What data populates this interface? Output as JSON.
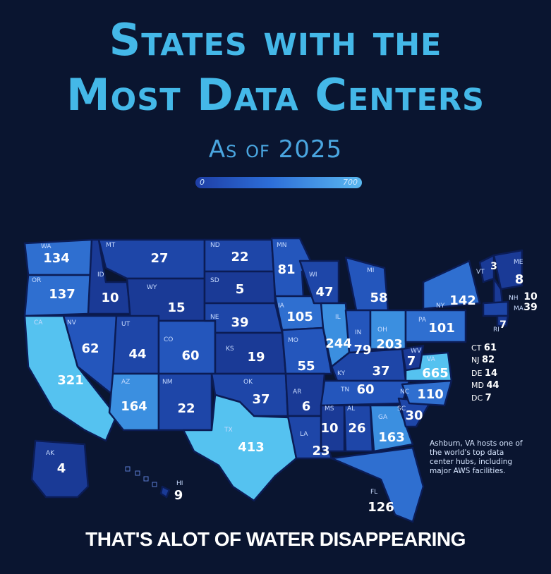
{
  "title": {
    "line1": "States with the",
    "line2": "Most Data Centers",
    "subtitle": "As of 2025"
  },
  "scale": {
    "min_label": "0",
    "max_label": "700"
  },
  "note": "Ashburn, VA hosts one of the world's top data center hubs, including major AWS facilities.",
  "caption": "THAT'S ALOT OF WATER DISAPPEARING",
  "colors": {
    "background": "#0a1530",
    "title": "#44b8e8",
    "low": "#1e3ea5",
    "mid": "#2d6ed8",
    "high": "#5ab8f0"
  },
  "states": [
    {
      "abbr": "WA",
      "value": "134"
    },
    {
      "abbr": "OR",
      "value": "137"
    },
    {
      "abbr": "CA",
      "value": "321"
    },
    {
      "abbr": "ID",
      "value": "10"
    },
    {
      "abbr": "NV",
      "value": "62"
    },
    {
      "abbr": "MT",
      "value": "27"
    },
    {
      "abbr": "WY",
      "value": "15"
    },
    {
      "abbr": "UT",
      "value": "44"
    },
    {
      "abbr": "AZ",
      "value": "164"
    },
    {
      "abbr": "CO",
      "value": "60"
    },
    {
      "abbr": "NM",
      "value": "22"
    },
    {
      "abbr": "ND",
      "value": "22"
    },
    {
      "abbr": "SD",
      "value": "5"
    },
    {
      "abbr": "NE",
      "value": "39"
    },
    {
      "abbr": "KS",
      "value": "19"
    },
    {
      "abbr": "OK",
      "value": "37"
    },
    {
      "abbr": "TX",
      "value": "413"
    },
    {
      "abbr": "MN",
      "value": "81"
    },
    {
      "abbr": "IA",
      "value": "105"
    },
    {
      "abbr": "MO",
      "value": "55"
    },
    {
      "abbr": "AR",
      "value": "6"
    },
    {
      "abbr": "LA",
      "value": "23"
    },
    {
      "abbr": "WI",
      "value": "47"
    },
    {
      "abbr": "IL",
      "value": "244"
    },
    {
      "abbr": "MI",
      "value": "58"
    },
    {
      "abbr": "IN",
      "value": "79"
    },
    {
      "abbr": "OH",
      "value": "203"
    },
    {
      "abbr": "KY",
      "value": "37"
    },
    {
      "abbr": "TN",
      "value": "60"
    },
    {
      "abbr": "MS",
      "value": "10"
    },
    {
      "abbr": "AL",
      "value": "26"
    },
    {
      "abbr": "GA",
      "value": "163"
    },
    {
      "abbr": "FL",
      "value": "126"
    },
    {
      "abbr": "SC",
      "value": "30"
    },
    {
      "abbr": "NC",
      "value": "110"
    },
    {
      "abbr": "VA",
      "value": "665"
    },
    {
      "abbr": "WV",
      "value": "7"
    },
    {
      "abbr": "PA",
      "value": "101"
    },
    {
      "abbr": "NY",
      "value": "142"
    },
    {
      "abbr": "VT",
      "value": "3"
    },
    {
      "abbr": "ME",
      "value": "8"
    },
    {
      "abbr": "NH",
      "value": "10"
    },
    {
      "abbr": "MA",
      "value": "39"
    },
    {
      "abbr": "RI",
      "value": "7"
    },
    {
      "abbr": "CT",
      "value": "61"
    },
    {
      "abbr": "NJ",
      "value": "82"
    },
    {
      "abbr": "DE",
      "value": "14"
    },
    {
      "abbr": "MD",
      "value": "44"
    },
    {
      "abbr": "DC",
      "value": "7"
    },
    {
      "abbr": "AK",
      "value": "4"
    },
    {
      "abbr": "HI",
      "value": "9"
    }
  ]
}
